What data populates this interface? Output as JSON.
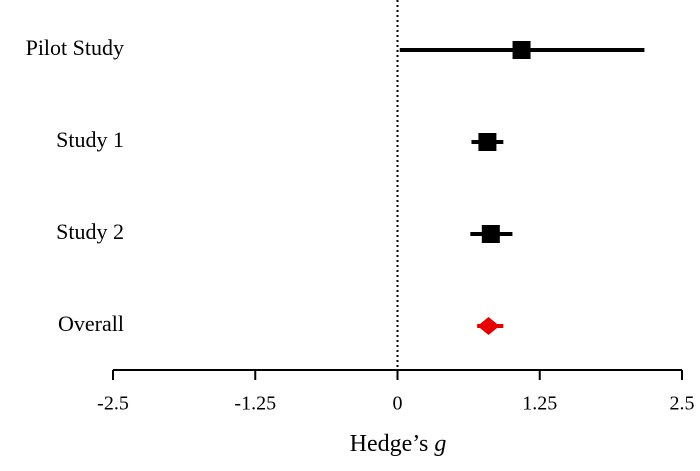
{
  "chart_data": {
    "type": "forest",
    "categories": [
      "Pilot Study",
      "Study 1",
      "Study 2",
      "Overall"
    ],
    "values": [
      1.09,
      0.79,
      0.82,
      0.8
    ],
    "lower": [
      0.02,
      0.65,
      0.64,
      0.7
    ],
    "upper": [
      2.17,
      0.93,
      1.01,
      0.93
    ],
    "markers": [
      "square",
      "square",
      "square",
      "diamond"
    ],
    "colors": [
      "#000000",
      "#000000",
      "#000000",
      "#e60000"
    ],
    "x_label": {
      "text": "Hedge’s",
      "italic": "g"
    },
    "xlim": [
      -2.5,
      2.5
    ],
    "xticks": [
      -2.5,
      -1.25,
      0,
      1.25,
      2.5
    ],
    "reference_line": 0
  }
}
